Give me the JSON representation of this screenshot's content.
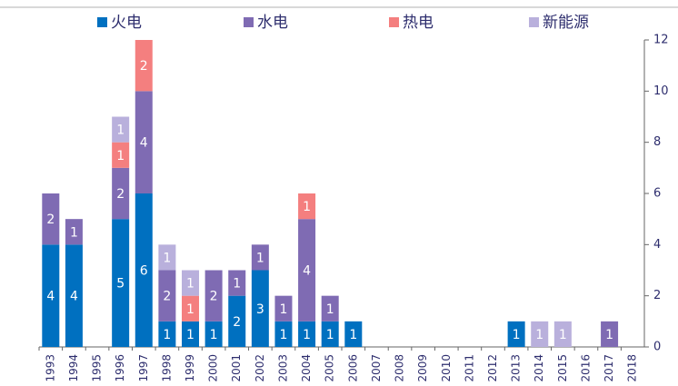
{
  "chart_data": {
    "type": "bar",
    "stacked": true,
    "categories": [
      "1993",
      "1994",
      "1995",
      "1996",
      "1997",
      "1998",
      "1999",
      "2000",
      "2001",
      "2002",
      "2003",
      "2004",
      "2005",
      "2006",
      "2007",
      "2008",
      "2009",
      "2010",
      "2011",
      "2012",
      "2013",
      "2014",
      "2015",
      "2016",
      "2017",
      "2018"
    ],
    "series": [
      {
        "name": "火电",
        "color": "#0070c0",
        "values": [
          4,
          4,
          null,
          5,
          6,
          1,
          1,
          1,
          2,
          3,
          1,
          1,
          1,
          1,
          null,
          null,
          null,
          null,
          null,
          null,
          1,
          null,
          null,
          null,
          null,
          null
        ]
      },
      {
        "name": "水电",
        "color": "#7f6bb3",
        "values": [
          2,
          1,
          null,
          2,
          4,
          2,
          null,
          2,
          1,
          1,
          1,
          4,
          1,
          null,
          null,
          null,
          null,
          null,
          null,
          null,
          null,
          null,
          null,
          null,
          1,
          null
        ]
      },
      {
        "name": "热电",
        "color": "#f47f7f",
        "values": [
          null,
          null,
          null,
          1,
          2,
          null,
          1,
          null,
          null,
          null,
          null,
          1,
          null,
          null,
          null,
          null,
          null,
          null,
          null,
          null,
          null,
          null,
          null,
          null,
          null,
          null
        ]
      },
      {
        "name": "新能源",
        "color": "#b9b0dc",
        "values": [
          null,
          null,
          null,
          1,
          null,
          1,
          1,
          null,
          null,
          null,
          null,
          null,
          null,
          null,
          null,
          null,
          null,
          null,
          null,
          null,
          null,
          1,
          1,
          null,
          null,
          null
        ]
      }
    ],
    "ylim": [
      0,
      12
    ],
    "yticks": [
      0,
      2,
      4,
      6,
      8,
      10,
      12
    ],
    "y_axis_side": "right",
    "legend": "top"
  }
}
